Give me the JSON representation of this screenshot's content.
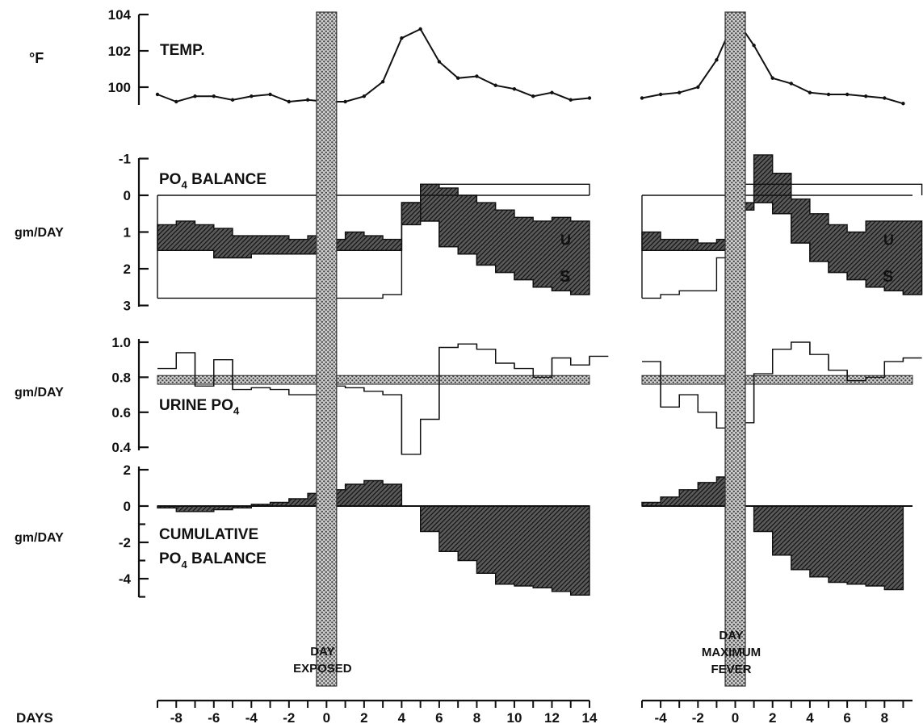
{
  "chart_data": {
    "type": "line",
    "colors": {
      "ink": "#111111",
      "stipple": "#bdbdbd",
      "hatch": "#222222"
    },
    "columns": [
      {
        "side": "left",
        "reference_label_lines": [
          "DAY",
          "EXPOSED"
        ],
        "x_ticks": [
          -8,
          -6,
          -4,
          -2,
          0,
          2,
          4,
          6,
          8,
          10,
          12,
          14
        ],
        "x_range": [
          -9.5,
          14.5
        ]
      },
      {
        "side": "right",
        "reference_label_lines": [
          "DAY",
          "MAXIMUM",
          "FEVER"
        ],
        "x_ticks": [
          -4,
          -2,
          0,
          2,
          4,
          6,
          8
        ],
        "x_range": [
          -5,
          9.5
        ]
      }
    ],
    "xlabel": "DAYS",
    "panels": {
      "temperature": {
        "label": "TEMP.",
        "unit": "°F",
        "ylim": [
          99,
          104
        ],
        "y_ticks": [
          "100",
          "102",
          "104"
        ],
        "left_x": [
          -9,
          -8,
          -7,
          -6,
          -5,
          -4,
          -3,
          -2,
          -1,
          0,
          1,
          2,
          3,
          4,
          5,
          6,
          7,
          8,
          9,
          10,
          11,
          12,
          13,
          14
        ],
        "left_y": [
          99.6,
          99.2,
          99.5,
          99.5,
          99.3,
          99.5,
          99.6,
          99.2,
          99.3,
          99.2,
          99.2,
          99.5,
          100.3,
          102.7,
          103.2,
          101.4,
          100.5,
          100.6,
          100.1,
          99.9,
          99.5,
          99.7,
          99.3,
          99.4
        ],
        "right_x": [
          -5,
          -4,
          -3,
          -2,
          -1,
          0,
          1,
          2,
          3,
          4,
          5,
          6,
          7,
          8,
          9
        ],
        "right_y": [
          99.4,
          99.6,
          99.7,
          100,
          101.5,
          103.8,
          102.3,
          100.5,
          100.2,
          99.7,
          99.6,
          99.6,
          99.5,
          99.4,
          99.1
        ]
      },
      "po4_balance": {
        "title_parts": [
          "PO",
          "4",
          " BALANCE"
        ],
        "unit": "gm/DAY",
        "ylim": [
          -1,
          3
        ],
        "y_ticks": [
          "-1",
          "0",
          "1",
          "2",
          "3"
        ],
        "region_labels": [
          "U",
          "S"
        ],
        "left_start": -9,
        "left_intake": [
          2.8,
          2.8,
          2.8,
          2.8,
          2.8,
          2.8,
          2.8,
          2.8,
          2.8,
          2.8,
          2.8,
          2.8,
          2.7,
          0.2,
          -0.3,
          -0.3,
          -0.3,
          -0.3,
          -0.3,
          -0.3,
          -0.3,
          -0.3,
          -0.3
        ],
        "left_stool": [
          1.5,
          1.5,
          1.5,
          1.7,
          1.7,
          1.6,
          1.6,
          1.6,
          1.6,
          1.5,
          1.5,
          1.5,
          1.5,
          0.2,
          0.7,
          1.4,
          1.6,
          1.9,
          2.1,
          2.3,
          2.5,
          2.6,
          2.7
        ],
        "left_urine": [
          0.8,
          0.7,
          0.8,
          0.9,
          1.1,
          1.1,
          1.1,
          1.2,
          1.1,
          1.2,
          1.0,
          1.1,
          1.2,
          0.8,
          -0.3,
          -0.2,
          0,
          0.2,
          0.4,
          0.6,
          0.7,
          0.6,
          0.7
        ],
        "right_start": -5,
        "right_intake": [
          2.8,
          2.7,
          2.6,
          2.6,
          1.7,
          -0.3,
          -0.3,
          -0.3,
          -0.3,
          -0.3,
          -0.3,
          -0.3,
          -0.3,
          -0.3,
          -0.3
        ],
        "right_stool": [
          1.5,
          1.5,
          1.5,
          1.5,
          1.5,
          0.4,
          0.2,
          0.5,
          1.3,
          1.8,
          2.1,
          2.3,
          2.5,
          2.6,
          2.7
        ],
        "right_urine": [
          1.0,
          1.2,
          1.2,
          1.3,
          1.2,
          0.2,
          -1.1,
          -0.6,
          0.1,
          0.5,
          0.8,
          1.0,
          0.7,
          0.7,
          0.7
        ]
      },
      "urine_po4": {
        "title_parts": [
          "URINE  PO",
          "4"
        ],
        "unit": "gm/DAY",
        "ylim": [
          0.35,
          1.0
        ],
        "y_ticks": [
          "0.4",
          "0.6",
          "0.8",
          "1.0"
        ],
        "band": [
          0.76,
          0.81
        ],
        "left_start": -9,
        "left_values": [
          0.85,
          0.94,
          0.75,
          0.9,
          0.73,
          0.74,
          0.73,
          0.7,
          0.7,
          0.75,
          0.74,
          0.72,
          0.7,
          0.36,
          0.56,
          0.97,
          0.99,
          0.96,
          0.88,
          0.85,
          0.8,
          0.91,
          0.87,
          0.92
        ],
        "right_start": -5,
        "right_values": [
          0.89,
          0.63,
          0.7,
          0.6,
          0.51,
          0.54,
          0.82,
          0.96,
          1.0,
          0.93,
          0.84,
          0.78,
          0.8,
          0.89,
          0.91
        ]
      },
      "cumulative_po4": {
        "title_lines": [
          [
            "CUMULATIVE"
          ],
          [
            "PO",
            "4",
            " BALANCE"
          ]
        ],
        "unit": "gm/DAY",
        "ylim": [
          -5,
          2
        ],
        "y_ticks": [
          "2",
          "0",
          "-2",
          "-4"
        ],
        "left_start": -9,
        "left_values": [
          -0.1,
          -0.3,
          -0.3,
          -0.2,
          -0.1,
          0.1,
          0.2,
          0.4,
          0.7,
          0.9,
          1.2,
          1.4,
          1.2,
          0,
          -1.4,
          -2.5,
          -3.0,
          -3.7,
          -4.3,
          -4.4,
          -4.5,
          -4.7,
          -4.9
        ],
        "right_start": -5,
        "right_values": [
          0.2,
          0.5,
          0.9,
          1.3,
          1.6,
          0,
          -1.4,
          -2.7,
          -3.5,
          -3.9,
          -4.2,
          -4.3,
          -4.4,
          -4.6
        ]
      }
    }
  }
}
